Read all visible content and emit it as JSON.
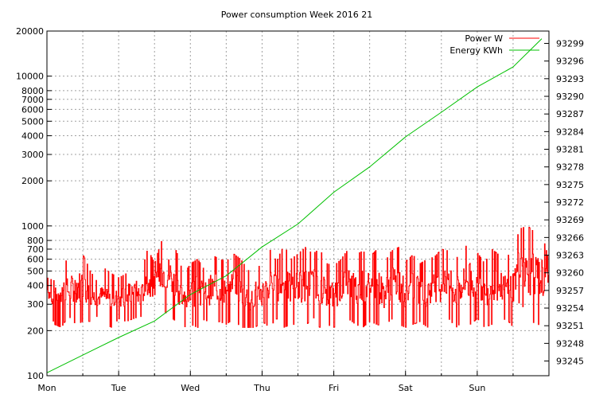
{
  "chart_data": {
    "type": "line",
    "title": "Power consumption Week 2016 21",
    "x": {
      "categories": [
        "Mon",
        "Tue",
        "Wed",
        "Thu",
        "Fri",
        "Sat",
        "Sun"
      ],
      "range_days": [
        0,
        7
      ]
    },
    "y_left": {
      "scale": "log",
      "range": [
        100,
        20000
      ],
      "ticks": [
        100,
        200,
        300,
        400,
        500,
        600,
        700,
        800,
        1000,
        2000,
        3000,
        4000,
        5000,
        6000,
        7000,
        8000,
        10000,
        20000
      ],
      "tick_labels": [
        "100",
        "200",
        "300",
        "400",
        "500",
        "600",
        "700",
        "800",
        "1000",
        "2000",
        "3000",
        "4000",
        "5000",
        "6000",
        "7000",
        "8000",
        "10000",
        "20000"
      ]
    },
    "y_right": {
      "scale": "linear",
      "range": [
        93242.5,
        93301.1
      ],
      "ticks": [
        93245,
        93248,
        93251,
        93254,
        93257,
        93260,
        93263,
        93266,
        93269,
        93272,
        93275,
        93278,
        93281,
        93284,
        93287,
        93290,
        93293,
        93296,
        93299
      ],
      "tick_labels": [
        "93245",
        "93248",
        "93251",
        "93254",
        "93257",
        "93260",
        "93263",
        "93266",
        "93269",
        "93272",
        "93275",
        "93278",
        "93281",
        "93284",
        "93287",
        "93290",
        "93293",
        "93296",
        "93299"
      ]
    },
    "grid": true,
    "legend_position": "top-right",
    "series": [
      {
        "name": "Power W",
        "axis": "left",
        "color": "#ff0000",
        "style": "steps",
        "x_days": [
          0.0,
          0.1,
          0.2,
          0.3,
          0.4,
          0.5,
          0.6,
          0.7,
          0.8,
          0.9,
          1.0,
          1.1,
          1.2,
          1.3,
          1.4,
          1.5,
          1.6,
          1.7,
          1.8,
          1.9,
          2.0,
          2.1,
          2.2,
          2.3,
          2.4,
          2.5,
          2.6,
          2.7,
          2.8,
          2.9,
          3.0,
          3.1,
          3.2,
          3.3,
          3.4,
          3.5,
          3.6,
          3.7,
          3.8,
          3.9,
          4.0,
          4.1,
          4.2,
          4.3,
          4.4,
          4.5,
          4.6,
          4.7,
          4.8,
          4.9,
          5.0,
          5.1,
          5.2,
          5.3,
          5.4,
          5.5,
          5.6,
          5.7,
          5.8,
          5.9,
          6.0,
          6.1,
          6.2,
          6.3,
          6.4,
          6.5,
          6.6,
          6.7,
          6.8,
          6.9,
          7.0
        ],
        "watts_max": [
          450,
          430,
          700,
          520,
          680,
          640,
          500,
          420,
          520,
          480,
          450,
          480,
          600,
          430,
          700,
          560,
          800,
          860,
          680,
          470,
          560,
          600,
          500,
          640,
          600,
          580,
          650,
          600,
          500,
          560,
          520,
          700,
          580,
          740,
          600,
          650,
          720,
          650,
          700,
          560,
          540,
          600,
          700,
          640,
          680,
          620,
          700,
          560,
          680,
          720,
          580,
          640,
          560,
          600,
          620,
          700,
          680,
          600,
          700,
          780,
          660,
          560,
          700,
          640,
          600,
          720,
          960,
          1000,
          900,
          880,
          560
        ],
        "watts_min": [
          300,
          220,
          210,
          250,
          220,
          230,
          230,
          250,
          220,
          210,
          240,
          230,
          240,
          250,
          230,
          260,
          280,
          250,
          230,
          210,
          220,
          210,
          240,
          210,
          230,
          220,
          240,
          210,
          210,
          210,
          230,
          210,
          240,
          210,
          220,
          220,
          210,
          250,
          210,
          220,
          210,
          230,
          240,
          220,
          210,
          230,
          220,
          210,
          240,
          220,
          210,
          220,
          230,
          210,
          230,
          220,
          240,
          210,
          230,
          220,
          240,
          210,
          220,
          230,
          240,
          210,
          330,
          210,
          230,
          210,
          250
        ]
      },
      {
        "name": "Energy KWh",
        "axis": "right",
        "color": "#00c000",
        "style": "line",
        "x_days": [
          0.0,
          0.5,
          1.0,
          1.5,
          2.0,
          2.5,
          3.0,
          3.5,
          4.0,
          4.5,
          5.0,
          5.5,
          6.0,
          6.5,
          6.9
        ],
        "kwh": [
          93243.0,
          93246.0,
          93249.0,
          93251.8,
          93256.3,
          93259.5,
          93264.4,
          93268.3,
          93273.7,
          93278.0,
          93283.1,
          93287.3,
          93291.6,
          93295.0,
          93299.8
        ]
      }
    ]
  }
}
